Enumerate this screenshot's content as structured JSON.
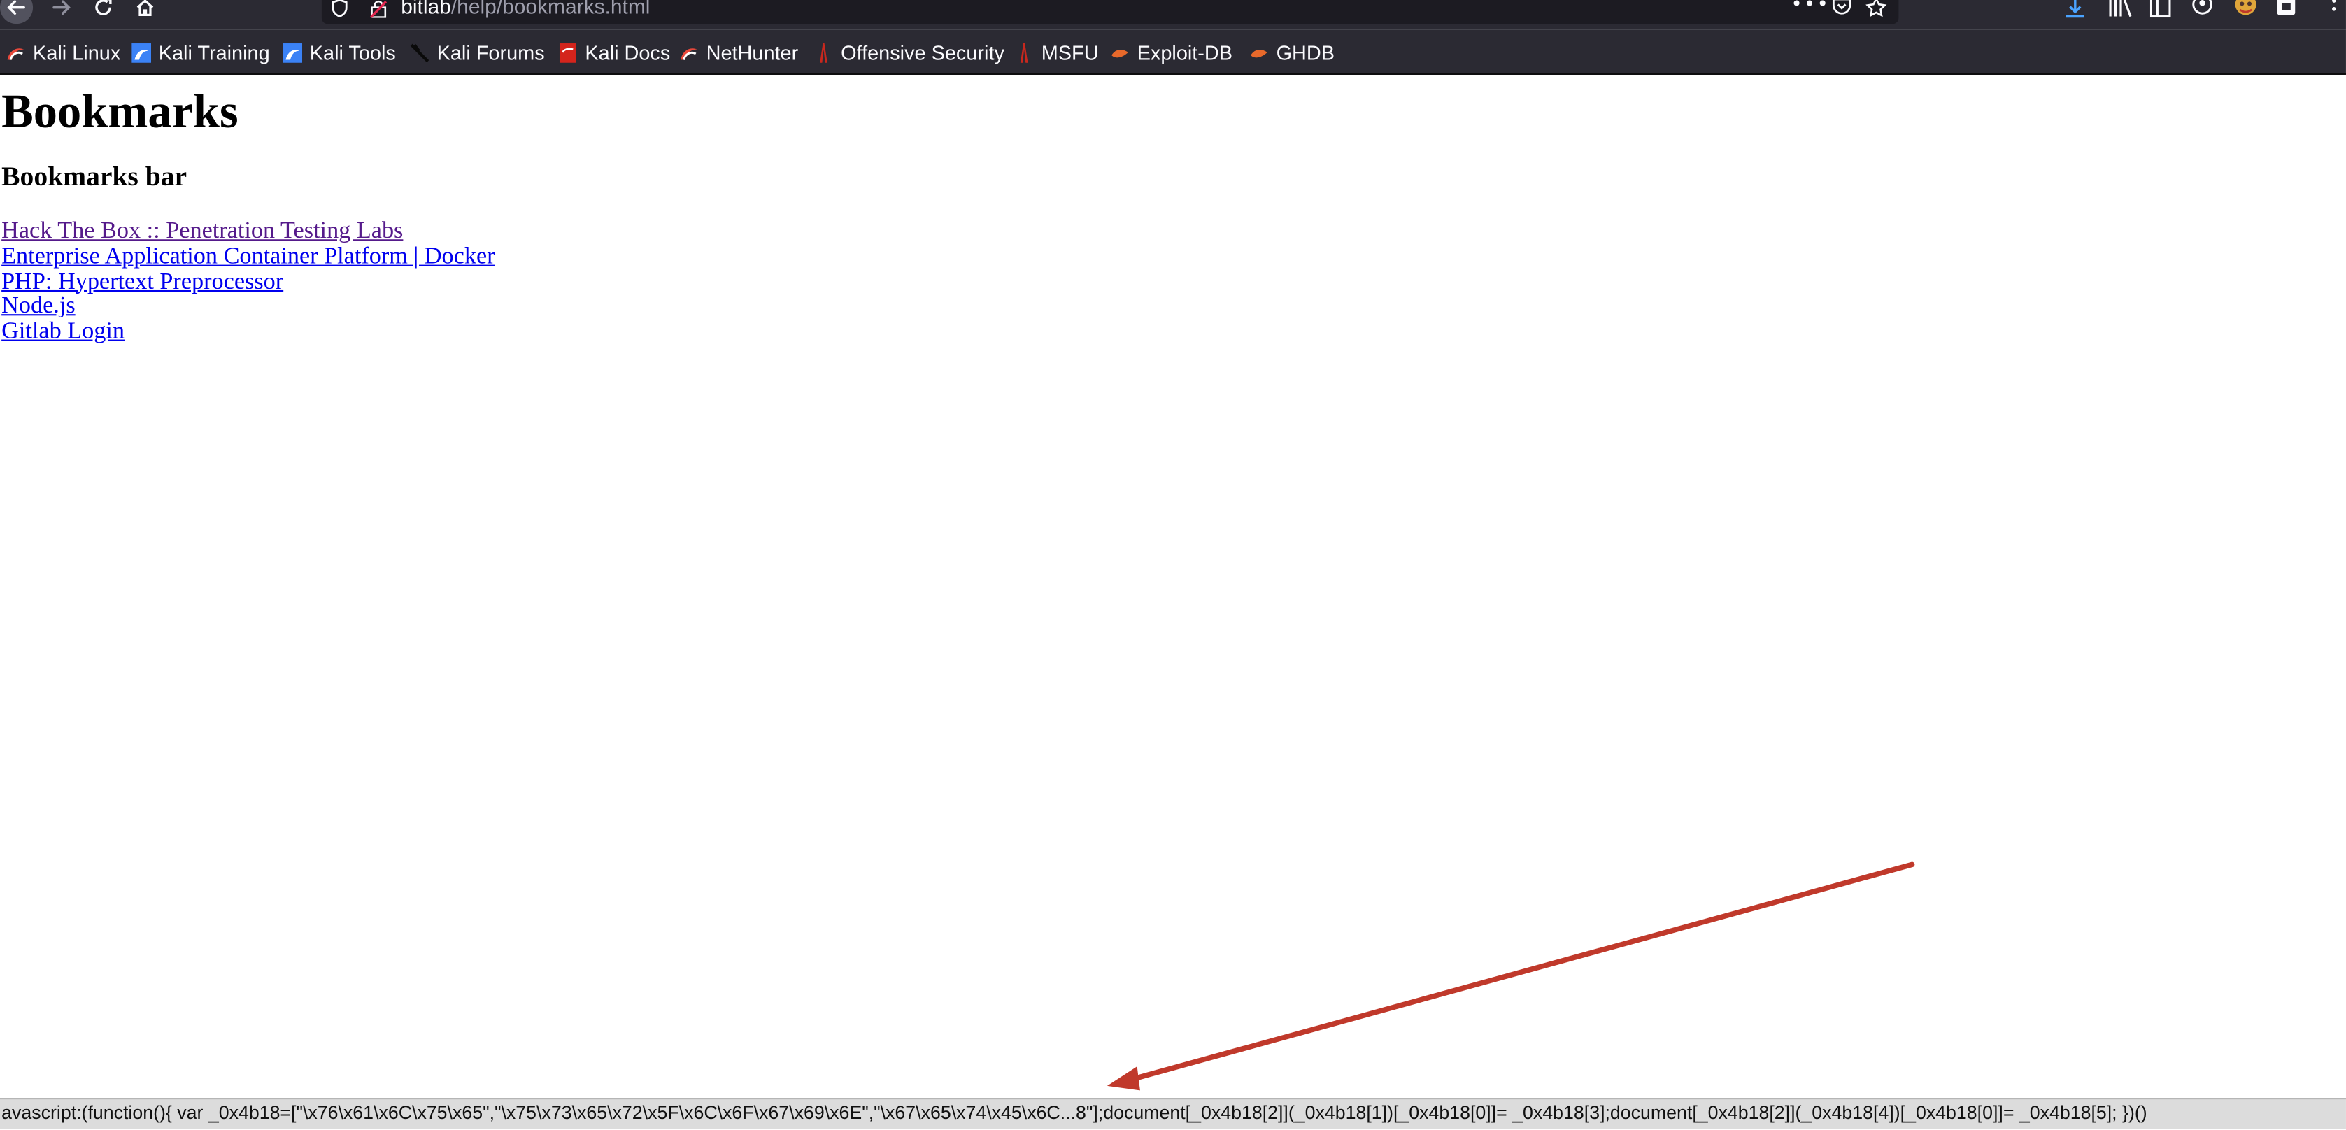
{
  "browser": {
    "url_host": "bitlab",
    "url_path": "/help/bookmarks.html"
  },
  "bookmarks_toolbar": [
    {
      "label": "Kali Linux",
      "icon": "kali-dragon-icon",
      "icon_color": "#e8483b"
    },
    {
      "label": "Kali Training",
      "icon": "kali-training-icon",
      "icon_color": "#3b82f6"
    },
    {
      "label": "Kali Tools",
      "icon": "kali-tools-icon",
      "icon_color": "#3b82f6"
    },
    {
      "label": "Kali Forums",
      "icon": "kali-forums-icon",
      "icon_color": "#111111"
    },
    {
      "label": "Kali Docs",
      "icon": "kali-docs-icon",
      "icon_color": "#d4241c"
    },
    {
      "label": "NetHunter",
      "icon": "nethunter-icon",
      "icon_color": "#e8483b"
    },
    {
      "label": "Offensive Security",
      "icon": "offsec-icon",
      "icon_color": "#c8281e"
    },
    {
      "label": "MSFU",
      "icon": "msfu-icon",
      "icon_color": "#c8281e"
    },
    {
      "label": "Exploit-DB",
      "icon": "exploit-db-icon",
      "icon_color": "#e8692b"
    },
    {
      "label": "GHDB",
      "icon": "ghdb-icon",
      "icon_color": "#e8692b"
    }
  ],
  "page": {
    "title": "Bookmarks",
    "section_heading": "Bookmarks bar",
    "links": [
      {
        "text": "Hack The Box :: Penetration Testing Labs",
        "visited": true
      },
      {
        "text": "Enterprise Application Container Platform | Docker",
        "visited": false
      },
      {
        "text": "PHP: Hypertext Preprocessor",
        "visited": false
      },
      {
        "text": "Node.js",
        "visited": false
      },
      {
        "text": "Gitlab Login",
        "visited": false
      }
    ]
  },
  "status_bar": {
    "text": "avascript:(function(){ var _0x4b18=[\"\\x76\\x61\\x6C\\x75\\x65\",\"\\x75\\x73\\x65\\x72\\x5F\\x6C\\x6F\\x67\\x69\\x6E\",\"\\x67\\x65\\x74\\x45\\x6C...8\"];document[_0x4b18[2]](_0x4b18[1])[_0x4b18[0]]= _0x4b18[3];document[_0x4b18[2]](_0x4b18[4])[_0x4b18[0]]= _0x4b18[5]; })()"
  },
  "annotation": {
    "arrow_color": "#c0392b"
  }
}
